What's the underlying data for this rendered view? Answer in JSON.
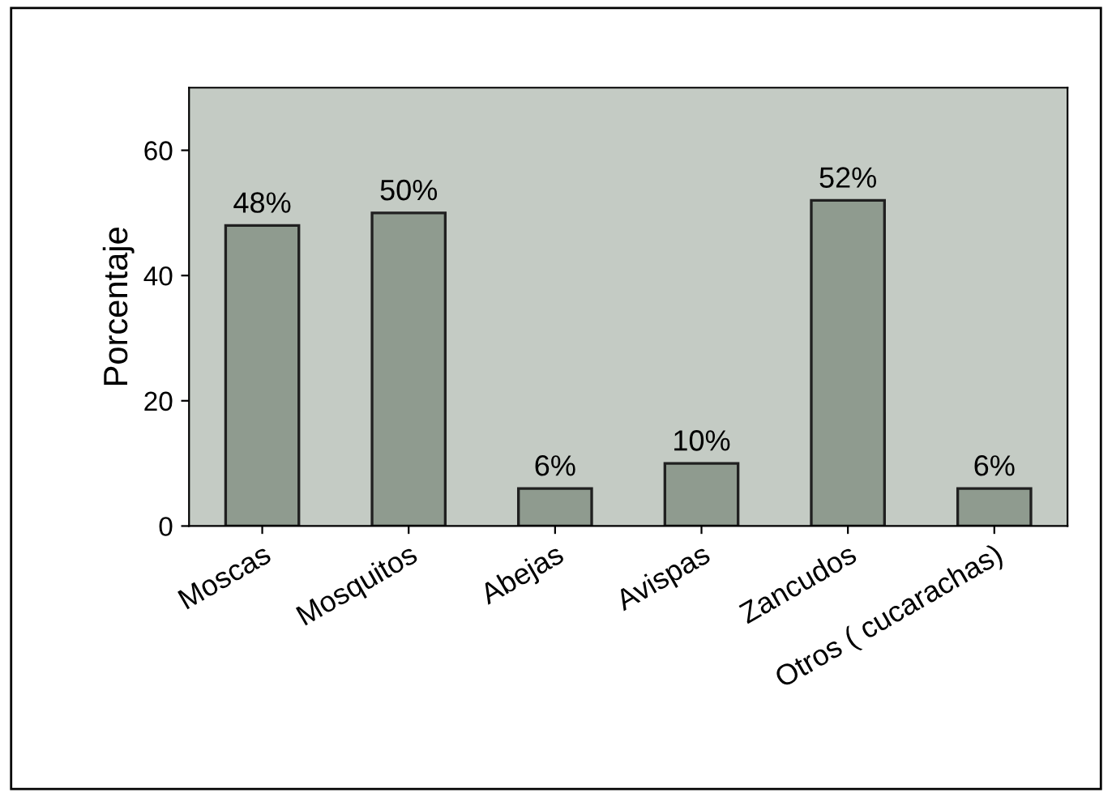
{
  "chart_data": {
    "type": "bar",
    "ylabel": "Porcentaje",
    "categories": [
      "Moscas",
      "Mosquitos",
      "Abejas",
      "Avispas",
      "Zancudos",
      "Otros ( cucarachas)"
    ],
    "values": [
      48,
      50,
      6,
      10,
      52,
      6
    ],
    "value_labels": [
      "48%",
      "50%",
      "6%",
      "10%",
      "52%",
      "6%"
    ],
    "color": "#8f9b8f",
    "ylim": [
      0,
      70
    ],
    "yticks": [
      0,
      20,
      40,
      60
    ]
  }
}
